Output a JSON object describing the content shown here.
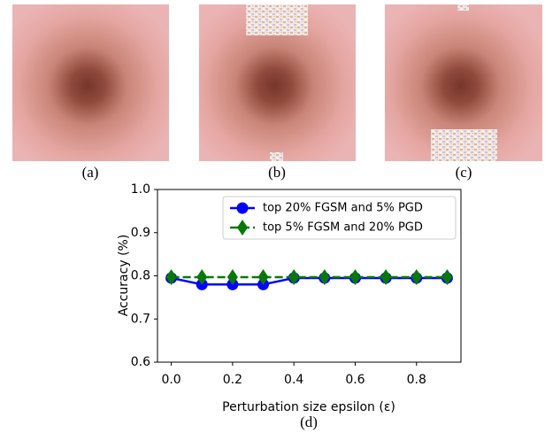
{
  "figure": {
    "captions": [
      "(a)",
      "(b)",
      "(c)",
      "(d)"
    ]
  },
  "chart_data": {
    "type": "line",
    "xlabel": "Perturbation size epsilon (ε)",
    "ylabel": "Accuracy (%)",
    "x": [
      0.0,
      0.1,
      0.2,
      0.3,
      0.4,
      0.5,
      0.6,
      0.7,
      0.8,
      0.9
    ],
    "series": [
      {
        "name": "top 20% FGSM and 5% PGD",
        "color": "#0000ff",
        "marker": "circle",
        "linestyle": "solid",
        "values": [
          0.795,
          0.78,
          0.78,
          0.78,
          0.795,
          0.795,
          0.795,
          0.795,
          0.795,
          0.795
        ]
      },
      {
        "name": "top 5% FGSM and 20% PGD",
        "color": "#087808",
        "marker": "diamond",
        "linestyle": "dashed",
        "values": [
          0.797,
          0.797,
          0.797,
          0.797,
          0.797,
          0.797,
          0.797,
          0.797,
          0.797,
          0.797
        ]
      }
    ],
    "xlim": [
      -0.045,
      0.945
    ],
    "ylim": [
      0.6,
      1.0
    ],
    "xticks": [
      {
        "value": 0,
        "label": "0.0"
      },
      0.2,
      0.4,
      0.6,
      0.8
    ],
    "yticks": [
      0.6,
      0.7,
      0.8,
      0.9,
      {
        "value": 1,
        "label": "1.0"
      }
    ],
    "legend": "upper right"
  }
}
